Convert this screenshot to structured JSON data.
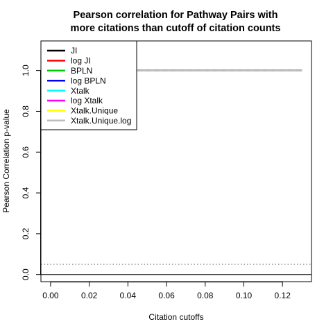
{
  "chart_data": {
    "type": "line",
    "title": [
      "Pearson correlation for Pathway Pairs with",
      "more citations than cutoff of citation counts"
    ],
    "xlabel": "Citation cutoffs",
    "ylabel": "Pearson Correlation p-value",
    "xlim": [
      -0.005,
      0.135
    ],
    "ylim": [
      -0.035,
      1.145
    ],
    "x_ticks": [
      0.0,
      0.02,
      0.04,
      0.06,
      0.08,
      0.1,
      0.12
    ],
    "x_tick_labels": [
      "0.00",
      "0.02",
      "0.04",
      "0.06",
      "0.08",
      "0.10",
      "0.12"
    ],
    "y_ticks": [
      0.0,
      0.2,
      0.4,
      0.6,
      0.8,
      1.0
    ],
    "y_tick_labels": [
      "0.0",
      "0.2",
      "0.4",
      "0.6",
      "0.8",
      "1.0"
    ],
    "grid": false,
    "legend_position": "top-left",
    "reference_lines": [
      {
        "y": 0.05,
        "style": "dotted",
        "color": "#555555"
      },
      {
        "y": 0.0,
        "style": "solid",
        "color": "#000000"
      }
    ],
    "x": [
      0.0,
      0.01,
      0.02,
      0.03,
      0.04,
      0.05,
      0.06,
      0.07,
      0.08,
      0.09,
      0.1,
      0.11,
      0.12,
      0.13
    ],
    "series": [
      {
        "name": "JI",
        "color": "#000000",
        "dash": "solid",
        "values": [
          1,
          1,
          1,
          1,
          1,
          1,
          1,
          1,
          1,
          1,
          1,
          1,
          1,
          1
        ]
      },
      {
        "name": "log JI",
        "color": "#ff0000",
        "dash": "solid",
        "values": [
          1,
          1,
          1,
          1,
          1,
          1,
          1,
          1,
          1,
          1,
          1,
          1,
          1,
          1
        ]
      },
      {
        "name": "BPLN",
        "color": "#00cd00",
        "dash": "solid",
        "values": [
          1,
          1,
          1,
          1,
          1,
          1,
          1,
          1,
          1,
          1,
          1,
          1,
          1,
          1
        ]
      },
      {
        "name": "log BPLN",
        "color": "#0000ff",
        "dash": "solid",
        "values": [
          1,
          1,
          1,
          1,
          1,
          1,
          1,
          1,
          1,
          1,
          1,
          1,
          1,
          1
        ]
      },
      {
        "name": "Xtalk",
        "color": "#00ffff",
        "dash": "solid",
        "values": [
          1,
          1,
          1,
          1,
          1,
          1,
          1,
          1,
          1,
          1,
          1,
          1,
          1,
          1
        ]
      },
      {
        "name": "log Xtalk",
        "color": "#ff00ff",
        "dash": "dashed",
        "values": [
          1,
          1,
          1,
          1,
          1,
          1,
          1,
          1,
          1,
          1,
          1,
          1,
          1,
          1
        ]
      },
      {
        "name": "Xtalk.Unique",
        "color": "#ffff00",
        "dash": "dashed",
        "values": [
          1,
          1,
          1,
          1,
          1,
          1,
          1,
          1,
          1,
          1,
          1,
          1,
          1,
          1
        ]
      },
      {
        "name": "Xtalk.Unique.log",
        "color": "#bebebe",
        "dash": "solid",
        "values": [
          1,
          1,
          1,
          1,
          1,
          1,
          1,
          1,
          1,
          1,
          1,
          1,
          1,
          1
        ]
      }
    ]
  }
}
